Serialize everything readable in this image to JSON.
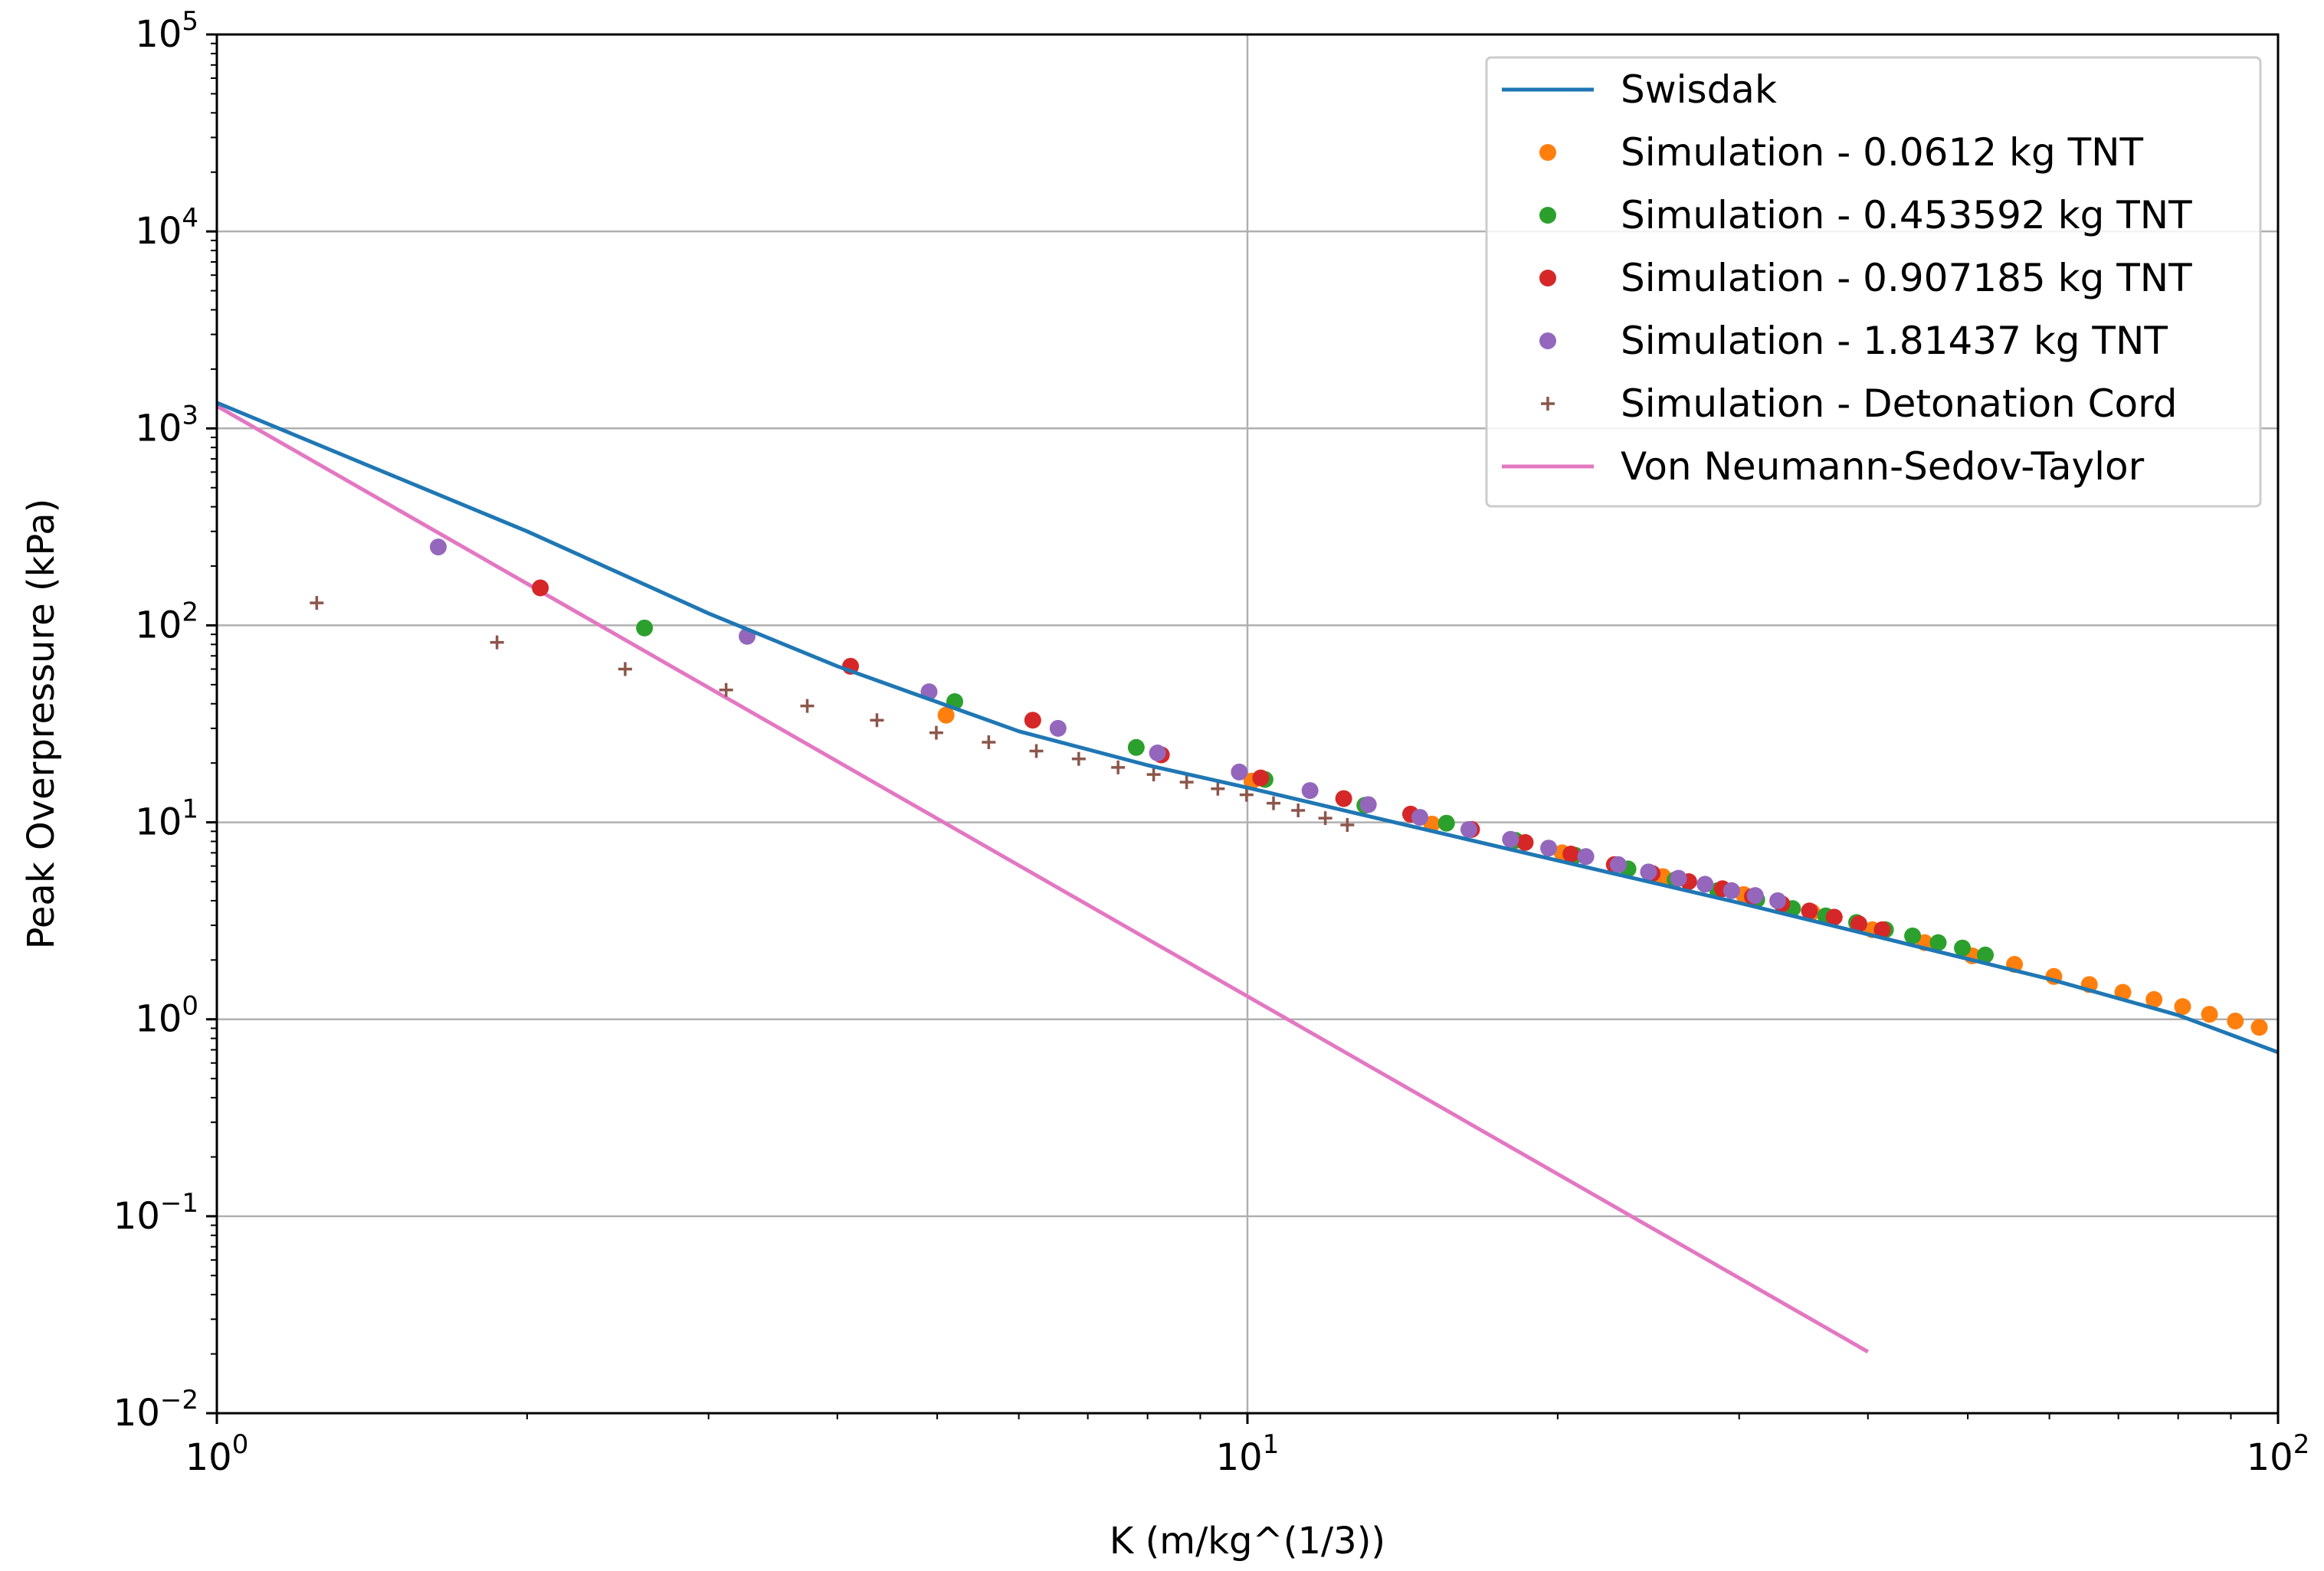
{
  "chart_data": {
    "type": "scatter",
    "title": "",
    "xlabel": "K (m/kg^(1/3))",
    "ylabel": "Peak Overpressure (kPa)",
    "xscale": "log",
    "yscale": "log",
    "xlim": [
      1,
      100
    ],
    "ylim": [
      0.01,
      100000
    ],
    "x_ticks": [
      {
        "value": 1,
        "base": "10",
        "exp": "0"
      },
      {
        "value": 10,
        "base": "10",
        "exp": "1"
      },
      {
        "value": 100,
        "base": "10",
        "exp": "2"
      }
    ],
    "y_ticks": [
      {
        "value": 0.01,
        "base": "10",
        "exp": "−2"
      },
      {
        "value": 0.1,
        "base": "10",
        "exp": "−1"
      },
      {
        "value": 1,
        "base": "10",
        "exp": "0"
      },
      {
        "value": 10,
        "base": "10",
        "exp": "1"
      },
      {
        "value": 100,
        "base": "10",
        "exp": "2"
      },
      {
        "value": 1000,
        "base": "10",
        "exp": "3"
      },
      {
        "value": 10000,
        "base": "10",
        "exp": "4"
      },
      {
        "value": 100000,
        "base": "10",
        "exp": "5"
      }
    ],
    "grid": "major",
    "legend_position": "top-right",
    "series": [
      {
        "name": "Swisdak",
        "kind": "line",
        "color": "#1f77b4",
        "x": [
          1.0,
          1.5,
          2.0,
          3.0,
          4.0,
          6.0,
          8.0,
          10.0,
          15.0,
          20.0,
          30.0,
          40.0,
          60.0,
          80.0,
          100.0
        ],
        "y": [
          1350,
          560,
          300,
          115,
          62,
          29,
          19.5,
          15,
          9.1,
          6.4,
          3.9,
          2.7,
          1.6,
          1.05,
          0.68
        ]
      },
      {
        "name": "Simulation - 0.0612 kg TNT",
        "kind": "scatter",
        "color": "#ff7f0e",
        "x": [
          5.1,
          10.1,
          15.1,
          20.2,
          25.3,
          30.3,
          35.3,
          40.4,
          45.4,
          50.5,
          55.5,
          60.6,
          65.6,
          70.7,
          75.8,
          80.8,
          85.8,
          90.9,
          95.9
        ],
        "y": [
          35,
          16.2,
          9.8,
          7.0,
          5.3,
          4.3,
          3.5,
          2.85,
          2.45,
          2.1,
          1.9,
          1.65,
          1.5,
          1.37,
          1.26,
          1.16,
          1.06,
          0.98,
          0.91
        ]
      },
      {
        "name": "Simulation - 0.453592 kg TNT",
        "kind": "scatter",
        "color": "#2ca02c",
        "x": [
          2.6,
          5.2,
          7.8,
          10.4,
          13.0,
          15.6,
          18.2,
          20.8,
          23.4,
          26.0,
          28.6,
          31.2,
          33.8,
          36.4,
          39.0,
          41.6,
          44.2,
          46.8,
          49.4,
          52.0
        ],
        "y": [
          97,
          41,
          24,
          16.5,
          12.2,
          9.9,
          8.1,
          6.8,
          5.8,
          5.1,
          4.5,
          4.05,
          3.65,
          3.35,
          3.1,
          2.85,
          2.65,
          2.45,
          2.3,
          2.12
        ]
      },
      {
        "name": "Simulation - 0.907185 kg TNT",
        "kind": "scatter",
        "color": "#d62728",
        "x": [
          2.06,
          4.12,
          6.19,
          8.25,
          10.3,
          12.4,
          14.4,
          16.5,
          18.6,
          20.6,
          22.7,
          24.7,
          26.8,
          28.9,
          30.9,
          33.0,
          35.1,
          37.1,
          39.2,
          41.3
        ],
        "y": [
          155,
          62,
          33,
          22,
          16.8,
          13.2,
          11.0,
          9.2,
          7.9,
          6.9,
          6.1,
          5.5,
          5.0,
          4.6,
          4.2,
          3.85,
          3.55,
          3.3,
          3.05,
          2.85
        ]
      },
      {
        "name": "Simulation - 1.81437 kg TNT",
        "kind": "scatter",
        "color": "#9467bd",
        "x": [
          1.64,
          3.27,
          4.91,
          6.55,
          8.18,
          9.82,
          11.5,
          13.1,
          14.7,
          16.4,
          18.0,
          19.6,
          21.3,
          22.9,
          24.5,
          26.2,
          27.8,
          29.5,
          31.1,
          32.7
        ],
        "y": [
          250,
          88,
          46,
          30,
          22.5,
          18,
          14.5,
          12.3,
          10.6,
          9.2,
          8.2,
          7.4,
          6.7,
          6.1,
          5.6,
          5.2,
          4.85,
          4.5,
          4.25,
          4.0
        ]
      },
      {
        "name": "Simulation - Detonation Cord",
        "kind": "scatter",
        "color": "#8c564b",
        "x": [
          1.25,
          1.87,
          2.49,
          3.12,
          3.74,
          4.37,
          4.99,
          5.61,
          6.24,
          6.86,
          7.49,
          8.11,
          8.73,
          9.36,
          9.98,
          10.6,
          11.2,
          11.9,
          12.5
        ],
        "y": [
          130,
          82,
          60,
          47,
          39,
          33,
          28.5,
          25.5,
          23,
          21,
          19,
          17.5,
          16,
          14.8,
          13.8,
          12.5,
          11.5,
          10.5,
          9.7
        ]
      },
      {
        "name": "Von Neumann-Sedov-Taylor",
        "kind": "line",
        "color": "#e377c2",
        "x": [
          1.0,
          40.0
        ],
        "y": [
          1300,
          0.0205
        ]
      }
    ]
  }
}
